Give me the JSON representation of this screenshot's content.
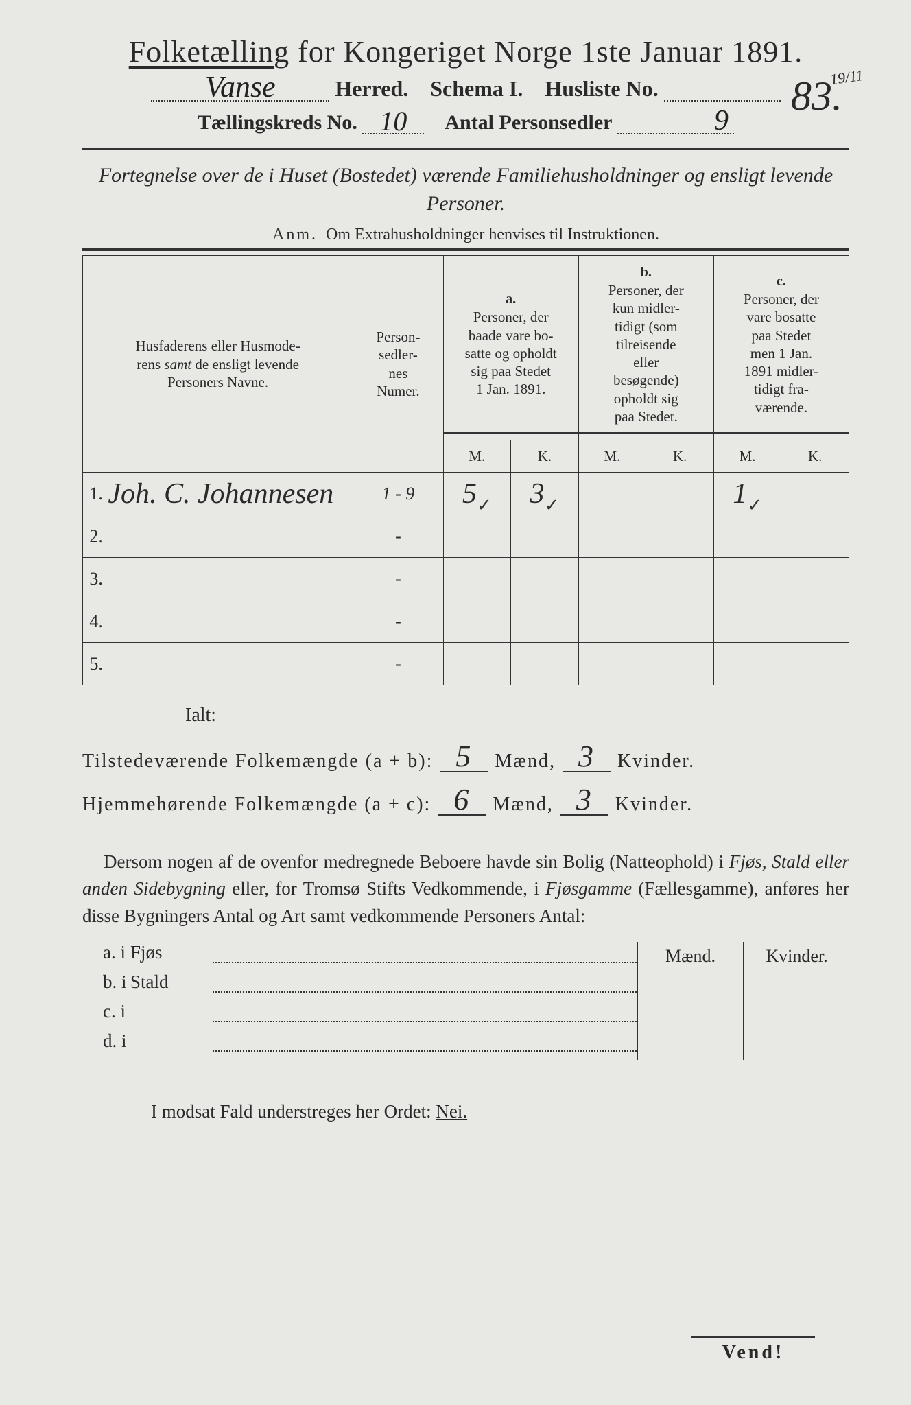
{
  "title": "Folketælling for Kongeriget Norge 1ste Januar 1891.",
  "herred_hw": "Vanse",
  "line2": {
    "herred": "Herred.",
    "schema": "Schema I.",
    "husliste": "Husliste No."
  },
  "husliste_no_hw": "83.",
  "tiny_annot": "19/11",
  "line3": {
    "kreds": "Tællingskreds No.",
    "kreds_hw": "10",
    "antal": "Antal Personsedler",
    "antal_hw": "9"
  },
  "subtitle": "Fortegnelse over de i Huset (Bostedet) værende Familiehusholdninger og ensligt levende Personer.",
  "anm_label": "Anm.",
  "anm_text": "Om Extrahusholdninger henvises til Instruktionen.",
  "columns": {
    "name": "Husfaderens eller Husmoderens samt de ensligt levende Personers Navne.",
    "num": "Person-sedler-nes Numer.",
    "a_label": "a.",
    "a": "Personer, der baade vare bosatte og opholdt sig paa Stedet 1 Jan. 1891.",
    "b_label": "b.",
    "b": "Personer, der kun midlertidigt (som tilreisende eller besøgende) opholdt sig paa Stedet.",
    "c_label": "c.",
    "c": "Personer, der vare bosatte paa Stedet men 1 Jan. 1891 midlertidigt fraværende.",
    "m": "M.",
    "k": "K."
  },
  "rows": [
    {
      "n": "1.",
      "name": "Joh. C. Johannesen",
      "num": "1 - 9",
      "a_m": "5",
      "a_k": "3",
      "b_m": "",
      "b_k": "",
      "c_m": "1",
      "c_k": ""
    },
    {
      "n": "2.",
      "name": "",
      "num": "-",
      "a_m": "",
      "a_k": "",
      "b_m": "",
      "b_k": "",
      "c_m": "",
      "c_k": ""
    },
    {
      "n": "3.",
      "name": "",
      "num": "-",
      "a_m": "",
      "a_k": "",
      "b_m": "",
      "b_k": "",
      "c_m": "",
      "c_k": ""
    },
    {
      "n": "4.",
      "name": "",
      "num": "-",
      "a_m": "",
      "a_k": "",
      "b_m": "",
      "b_k": "",
      "c_m": "",
      "c_k": ""
    },
    {
      "n": "5.",
      "name": "",
      "num": "-",
      "a_m": "",
      "a_k": "",
      "b_m": "",
      "b_k": "",
      "c_m": "",
      "c_k": ""
    }
  ],
  "totals": {
    "ialt": "Ialt:",
    "row1_label": "Tilstedeværende Folkemængde (a + b):",
    "row2_label": "Hjemmehørende Folkemængde (a + c):",
    "maend": "Mænd,",
    "kvinder": "Kvinder.",
    "r1_m": "5",
    "r1_k": "3",
    "r2_m": "6",
    "r2_k": "3"
  },
  "para": "Dersom nogen af de ovenfor medregnede Beboere havde sin Bolig (Natteophold) i Fjøs, Stald eller anden Sidebygning eller, for Tromsø Stifts Vedkommende, i Fjøsgamme (Fællesgamme), anføres her disse Bygningers Antal og Art samt vedkommende Personers Antal:",
  "lower_headers": {
    "m": "Mænd.",
    "k": "Kvinder."
  },
  "lower_items": [
    {
      "key": "a.  i",
      "word": "Fjøs"
    },
    {
      "key": "b.  i",
      "word": "Stald"
    },
    {
      "key": "c.  i",
      "word": ""
    },
    {
      "key": "d.  i",
      "word": ""
    }
  ],
  "nei": "I modsat Fald understreges her Ordet: Nei.",
  "nei_word": "Nei.",
  "vend": "Vend!"
}
